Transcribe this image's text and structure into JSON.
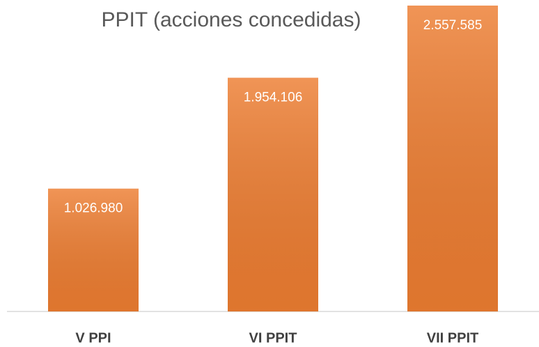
{
  "chart_data": {
    "type": "bar",
    "title": "PPIT (acciones concedidas)",
    "categories": [
      "V PPI",
      "VI PPIT",
      "VII PPIT"
    ],
    "values": [
      1026980,
      1954106,
      2557585
    ],
    "value_labels": [
      "1.026.980",
      "1.954.106",
      "2.557.585"
    ],
    "color": "#ed7d31"
  }
}
